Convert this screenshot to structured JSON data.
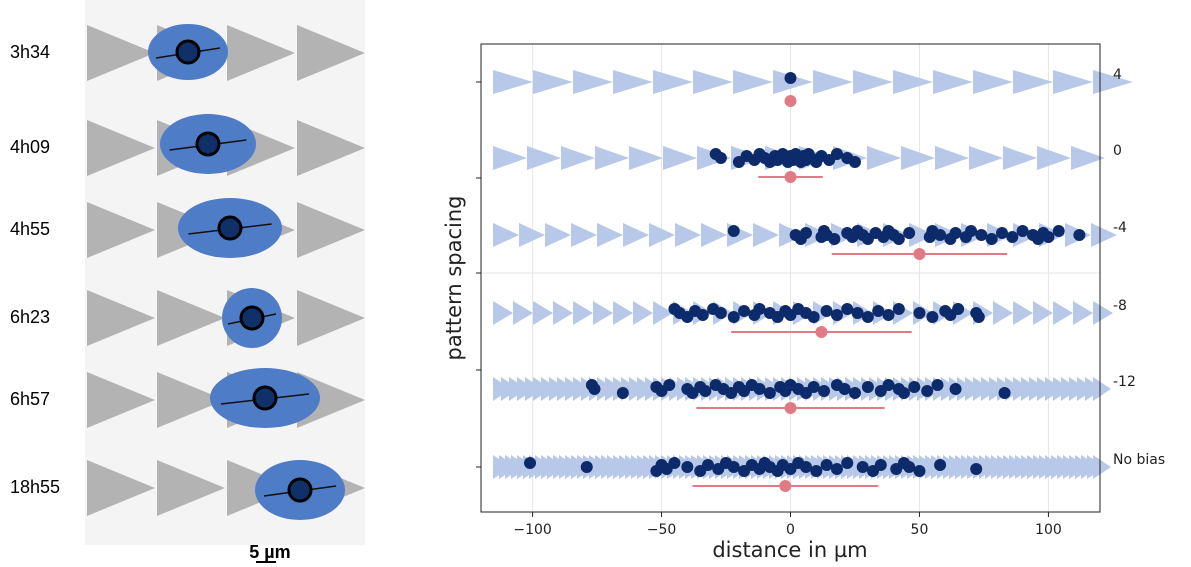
{
  "left_panel": {
    "times": [
      "3h34",
      "4h09",
      "4h55",
      "6h23",
      "6h57",
      "18h55"
    ],
    "scale_bar": "5 µm"
  },
  "chart_data": {
    "type": "strip",
    "xlabel": "distance in µm",
    "ylabel": "pattern spacing",
    "xlim": [
      -120,
      120
    ],
    "xticks": [
      {
        "value": -100,
        "label": "−100"
      },
      {
        "value": -50,
        "label": "−50"
      },
      0,
      50,
      100
    ],
    "categories": [
      "4",
      "0",
      "-4",
      "-8",
      "-12",
      "No bias"
    ],
    "point_color": "#0d2b6b",
    "mean_color": "#e07b85",
    "points": [
      [
        0
      ],
      [
        -29,
        -27,
        -20,
        -17,
        -14,
        -12,
        -10,
        -8,
        -6,
        -5,
        -3,
        -2,
        -1,
        0,
        1,
        2,
        3,
        4,
        5,
        6,
        7,
        8,
        10,
        12,
        15,
        18,
        22,
        25
      ],
      [
        -22,
        2,
        4,
        6,
        12,
        13,
        14,
        17,
        22,
        24,
        26,
        28,
        30,
        33,
        36,
        38,
        40,
        42,
        46,
        54,
        55,
        58,
        62,
        64,
        68,
        70,
        74,
        78,
        82,
        86,
        90,
        94,
        96,
        98,
        100,
        104,
        112
      ],
      [
        -45,
        -43,
        -40,
        -37,
        -34,
        -30,
        -27,
        -22,
        -18,
        -14,
        -12,
        -8,
        -5,
        -2,
        0,
        3,
        6,
        9,
        14,
        18,
        22,
        26,
        30,
        34,
        38,
        42,
        50,
        55,
        60,
        62,
        65,
        72,
        73
      ],
      [
        -77,
        -76,
        -65,
        -52,
        -50,
        -47,
        -40,
        -38,
        -35,
        -33,
        -29,
        -26,
        -23,
        -20,
        -18,
        -15,
        -12,
        -8,
        -4,
        -2,
        0,
        3,
        6,
        9,
        13,
        18,
        21,
        25,
        30,
        35,
        38,
        42,
        44,
        48,
        53,
        57,
        64,
        83
      ],
      [
        -101,
        -79,
        -52,
        -50,
        -48,
        -45,
        -40,
        -35,
        -32,
        -28,
        -25,
        -22,
        -18,
        -15,
        -12,
        -10,
        -8,
        -5,
        -3,
        0,
        3,
        6,
        10,
        14,
        18,
        22,
        28,
        32,
        35,
        41,
        44,
        46,
        50,
        58,
        72
      ]
    ],
    "means": [
      0,
      0,
      50,
      12,
      0,
      -2
    ],
    "errors": [
      0,
      12.5,
      34,
      35,
      36.5,
      36
    ]
  }
}
